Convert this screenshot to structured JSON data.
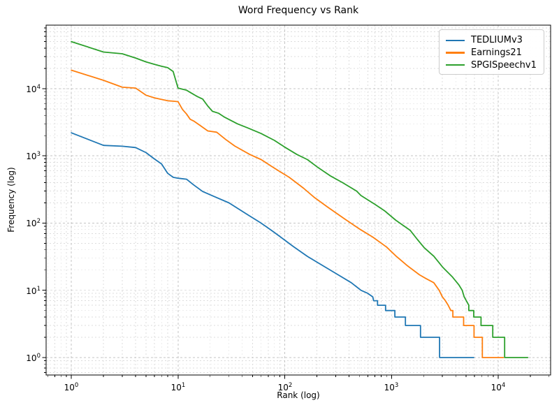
{
  "chart_data": {
    "type": "line",
    "title": "Word Frequency vs Rank",
    "xlabel": "Rank (log)",
    "ylabel": "Frequency (log)",
    "x_scale": "log",
    "y_scale": "log",
    "x_range": [
      0.58,
      31000
    ],
    "y_range": [
      0.55,
      88000
    ],
    "x_ticks": [
      1,
      10,
      100,
      1000,
      10000
    ],
    "y_ticks": [
      1,
      10,
      100,
      1000,
      10000
    ],
    "grid": {
      "which": "both",
      "linestyle": "dashed",
      "major_color": "#c4c4c4",
      "minor_color": "#dcdcdc"
    },
    "legend_position": "upper right",
    "background_color": "#ffffff",
    "series": [
      {
        "name": "TEDLIUMv3",
        "color": "#1f77b4",
        "points": [
          [
            1,
            2200
          ],
          [
            2,
            1430
          ],
          [
            3,
            1390
          ],
          [
            4,
            1330
          ],
          [
            5,
            1120
          ],
          [
            6,
            900
          ],
          [
            7,
            760
          ],
          [
            8,
            550
          ],
          [
            9,
            480
          ],
          [
            10,
            465
          ],
          [
            12,
            450
          ],
          [
            14,
            370
          ],
          [
            17,
            295
          ],
          [
            21,
            255
          ],
          [
            30,
            200
          ],
          [
            44,
            136
          ],
          [
            60,
            100
          ],
          [
            75,
            78
          ],
          [
            89,
            64
          ],
          [
            120,
            45
          ],
          [
            163,
            32
          ],
          [
            230,
            23
          ],
          [
            316,
            17
          ],
          [
            420,
            13
          ],
          [
            518,
            10
          ],
          [
            600,
            9
          ],
          [
            668,
            8
          ],
          [
            680,
            7
          ],
          [
            740,
            7
          ],
          [
            740,
            6
          ],
          [
            880,
            6
          ],
          [
            880,
            5
          ],
          [
            1076,
            5
          ],
          [
            1076,
            4
          ],
          [
            1350,
            4
          ],
          [
            1350,
            3
          ],
          [
            1870,
            3
          ],
          [
            1870,
            2
          ],
          [
            2825,
            2
          ],
          [
            2825,
            1
          ],
          [
            5900,
            1
          ]
        ]
      },
      {
        "name": "Earnings21",
        "color": "#ff7f0e",
        "points": [
          [
            1,
            18800
          ],
          [
            2,
            13300
          ],
          [
            3,
            10500
          ],
          [
            4,
            10200
          ],
          [
            5,
            8000
          ],
          [
            6,
            7300
          ],
          [
            7,
            6900
          ],
          [
            8,
            6600
          ],
          [
            9,
            6500
          ],
          [
            10,
            6400
          ],
          [
            11,
            4900
          ],
          [
            12,
            4200
          ],
          [
            13,
            3500
          ],
          [
            14,
            3300
          ],
          [
            16,
            2850
          ],
          [
            19,
            2350
          ],
          [
            23,
            2250
          ],
          [
            28,
            1750
          ],
          [
            34,
            1400
          ],
          [
            47,
            1050
          ],
          [
            60,
            880
          ],
          [
            75,
            700
          ],
          [
            89,
            590
          ],
          [
            110,
            480
          ],
          [
            150,
            330
          ],
          [
            190,
            240
          ],
          [
            250,
            175
          ],
          [
            365,
            115
          ],
          [
            500,
            82
          ],
          [
            668,
            62
          ],
          [
            900,
            44
          ],
          [
            1110,
            32
          ],
          [
            1420,
            23
          ],
          [
            1830,
            17
          ],
          [
            2100,
            15
          ],
          [
            2490,
            13
          ],
          [
            2800,
            10
          ],
          [
            3000,
            8
          ],
          [
            3200,
            7
          ],
          [
            3400,
            6
          ],
          [
            3600,
            5
          ],
          [
            3760,
            5
          ],
          [
            3760,
            4
          ],
          [
            4740,
            4
          ],
          [
            4740,
            3
          ],
          [
            5940,
            3
          ],
          [
            5940,
            2
          ],
          [
            7100,
            2
          ],
          [
            7100,
            1
          ],
          [
            11200,
            1
          ]
        ]
      },
      {
        "name": "SPGISpeechv1",
        "color": "#2ca02c",
        "points": [
          [
            1,
            50000
          ],
          [
            2,
            35000
          ],
          [
            3,
            33000
          ],
          [
            4,
            28500
          ],
          [
            5,
            25000
          ],
          [
            6,
            23000
          ],
          [
            7,
            21500
          ],
          [
            8,
            20500
          ],
          [
            9,
            18000
          ],
          [
            10,
            10200
          ],
          [
            11,
            9800
          ],
          [
            12,
            9500
          ],
          [
            13,
            8800
          ],
          [
            15,
            7700
          ],
          [
            17,
            7000
          ],
          [
            19,
            5500
          ],
          [
            21,
            4600
          ],
          [
            24,
            4300
          ],
          [
            27,
            3800
          ],
          [
            36,
            3000
          ],
          [
            45,
            2600
          ],
          [
            60,
            2150
          ],
          [
            80,
            1700
          ],
          [
            99,
            1360
          ],
          [
            130,
            1050
          ],
          [
            163,
            880
          ],
          [
            200,
            690
          ],
          [
            270,
            500
          ],
          [
            348,
            400
          ],
          [
            470,
            300
          ],
          [
            518,
            257
          ],
          [
            700,
            190
          ],
          [
            859,
            153
          ],
          [
            1100,
            110
          ],
          [
            1500,
            78
          ],
          [
            1750,
            57
          ],
          [
            2030,
            43
          ],
          [
            2500,
            32
          ],
          [
            3025,
            22
          ],
          [
            3700,
            16
          ],
          [
            4290,
            12
          ],
          [
            4600,
            10
          ],
          [
            4800,
            8
          ],
          [
            5300,
            6
          ],
          [
            5300,
            5
          ],
          [
            5900,
            5
          ],
          [
            5900,
            4
          ],
          [
            6900,
            4
          ],
          [
            6900,
            3
          ],
          [
            8900,
            3
          ],
          [
            8900,
            2
          ],
          [
            11500,
            2
          ],
          [
            11500,
            1
          ],
          [
            18900,
            1
          ]
        ]
      }
    ]
  }
}
